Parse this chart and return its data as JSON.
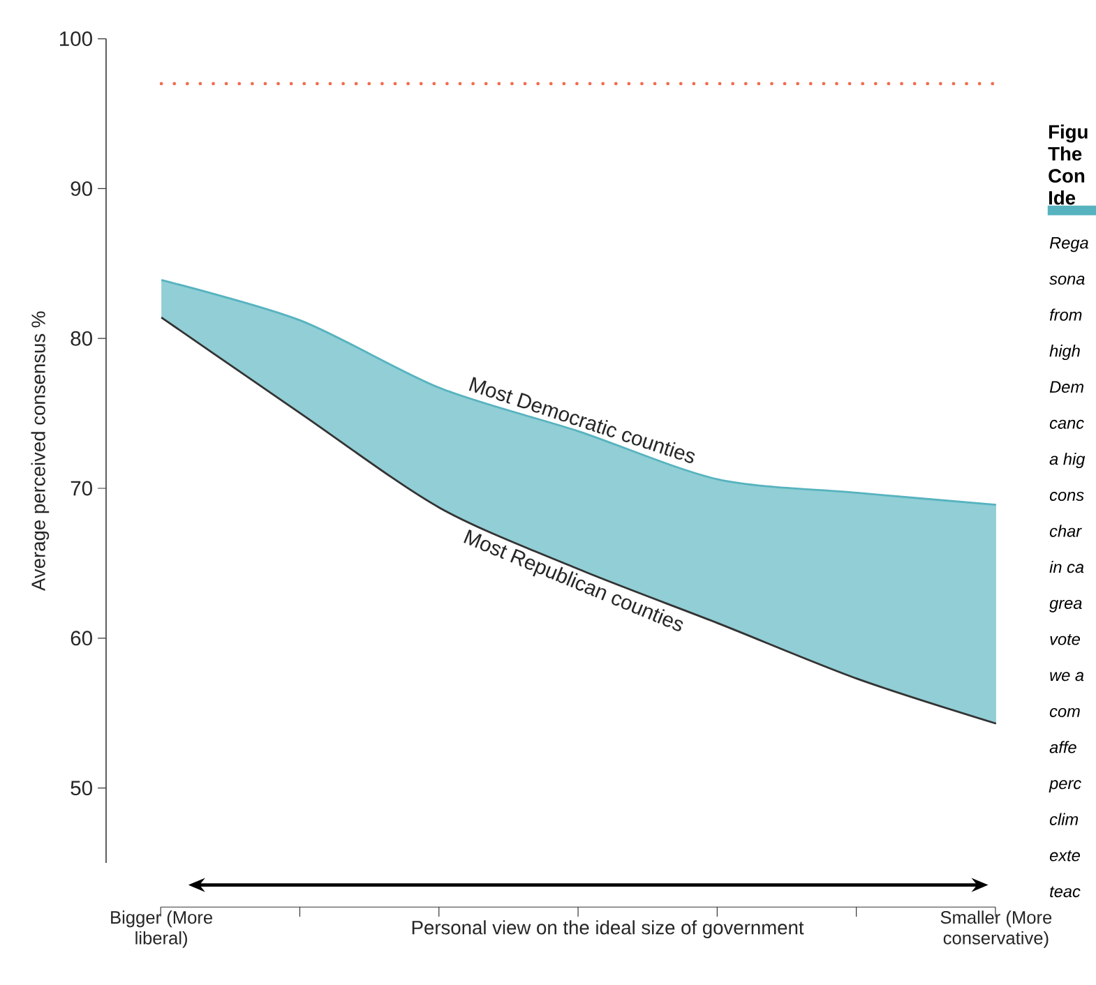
{
  "chart_data": {
    "type": "line",
    "title": "Figu The Con Ide",
    "xlabel": "Personal view on the ideal size of government",
    "ylabel": "Average perceived consensus %",
    "categories": [
      "Bigger (More liberal)",
      null,
      null,
      null,
      null,
      null,
      "Smaller (More conservative)"
    ],
    "series": [
      {
        "name": "Most Democratic counties",
        "color": "#56b3bf",
        "values": [
          83.9,
          81.2,
          76.7,
          73.8,
          70.6,
          69.7,
          68.9
        ],
        "lower": [
          81.4,
          75.0,
          68.7,
          64.6,
          61.0,
          57.3,
          54.3
        ],
        "upper": [
          83.9,
          81.2,
          76.7,
          73.8,
          70.6,
          69.7,
          68.9
        ]
      },
      {
        "name": "Most Republican counties",
        "color": "#333333",
        "values": [
          81.4,
          75.0,
          68.7,
          64.6,
          61.0,
          57.3,
          54.3
        ]
      }
    ],
    "ylim": [
      45,
      100
    ],
    "yticks": [
      50,
      60,
      70,
      80,
      90,
      100
    ],
    "ref_lines": [
      {
        "axis": "y",
        "value": 97,
        "color": "#f26b4f",
        "line_style": "dotted"
      }
    ],
    "annotations": [
      "Rega",
      "sona",
      "from",
      "high",
      "Dem",
      "canc",
      "a hig",
      "cons",
      "char",
      "in ca",
      "grea",
      "vote",
      "we a",
      "com",
      "affe",
      "perc",
      "clim",
      "exte",
      "teac"
    ]
  }
}
